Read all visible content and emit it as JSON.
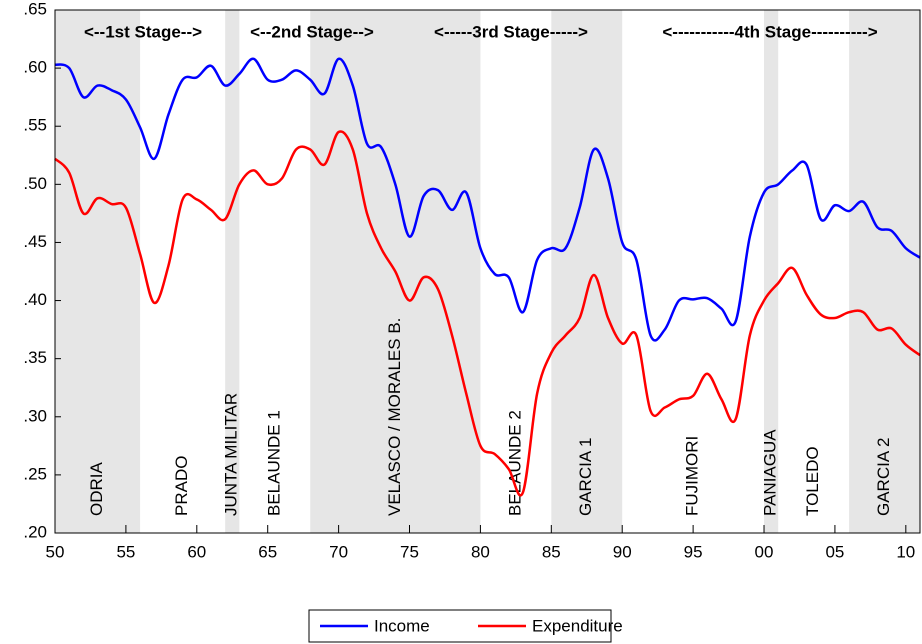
{
  "chart_data": {
    "type": "line",
    "annotations": [
      "<--1st Stage-->",
      "<--2nd Stage-->",
      "<-----3rd Stage----->",
      "<-----------4th Stage---------->"
    ],
    "periods": [
      {
        "label": "ODRIA",
        "start": 1950,
        "end": 1956,
        "shaded": true
      },
      {
        "label": "PRADO",
        "start": 1956,
        "end": 1962,
        "shaded": false
      },
      {
        "label": "JUNTA MILITAR",
        "start": 1962,
        "end": 1963,
        "shaded": true
      },
      {
        "label": "BELAUNDE 1",
        "start": 1963,
        "end": 1968,
        "shaded": false
      },
      {
        "label": "VELASCO / MORALES B.",
        "start": 1968,
        "end": 1980,
        "shaded": true
      },
      {
        "label": "BELAUNDE 2",
        "start": 1980,
        "end": 1985,
        "shaded": false
      },
      {
        "label": "GARCIA 1",
        "start": 1985,
        "end": 1990,
        "shaded": true
      },
      {
        "label": "FUJIMORI",
        "start": 1990,
        "end": 2000,
        "shaded": false
      },
      {
        "label": "PANIAGUA",
        "start": 2000,
        "end": 2001,
        "shaded": true
      },
      {
        "label": "TOLEDO",
        "start": 2001,
        "end": 2006,
        "shaded": false
      },
      {
        "label": "GARCIA 2",
        "start": 2006,
        "end": 2011,
        "shaded": true
      }
    ],
    "shade_color": "#e6e6e6",
    "x": [
      1950,
      1951,
      1952,
      1953,
      1954,
      1955,
      1956,
      1957,
      1958,
      1959,
      1960,
      1961,
      1962,
      1963,
      1964,
      1965,
      1966,
      1967,
      1968,
      1969,
      1970,
      1971,
      1972,
      1973,
      1974,
      1975,
      1976,
      1977,
      1978,
      1979,
      1980,
      1981,
      1982,
      1983,
      1984,
      1985,
      1986,
      1987,
      1988,
      1989,
      1990,
      1991,
      1992,
      1993,
      1994,
      1995,
      1996,
      1997,
      1998,
      1999,
      2000,
      2001,
      2002,
      2003,
      2004,
      2005,
      2006,
      2007,
      2008,
      2009,
      2010,
      2011
    ],
    "series": [
      {
        "name": "Income",
        "color": "#0000ff",
        "values": [
          0.603,
          0.6,
          0.575,
          0.585,
          0.581,
          0.573,
          0.549,
          0.522,
          0.56,
          0.59,
          0.592,
          0.602,
          0.585,
          0.595,
          0.608,
          0.59,
          0.59,
          0.598,
          0.59,
          0.578,
          0.608,
          0.585,
          0.535,
          0.532,
          0.5,
          0.455,
          0.49,
          0.495,
          0.478,
          0.493,
          0.445,
          0.423,
          0.42,
          0.39,
          0.435,
          0.445,
          0.445,
          0.48,
          0.53,
          0.505,
          0.45,
          0.435,
          0.37,
          0.375,
          0.4,
          0.401,
          0.402,
          0.393,
          0.382,
          0.455,
          0.493,
          0.5,
          0.512,
          0.517,
          0.47,
          0.482,
          0.477,
          0.485,
          0.463,
          0.46,
          0.445,
          0.437
        ]
      },
      {
        "name": "Expenditure",
        "color": "#ff0000",
        "values": [
          0.522,
          0.51,
          0.475,
          0.488,
          0.483,
          0.48,
          0.44,
          0.398,
          0.43,
          0.487,
          0.487,
          0.478,
          0.47,
          0.5,
          0.512,
          0.5,
          0.505,
          0.53,
          0.53,
          0.517,
          0.545,
          0.53,
          0.475,
          0.445,
          0.425,
          0.4,
          0.42,
          0.41,
          0.37,
          0.32,
          0.275,
          0.268,
          0.255,
          0.235,
          0.32,
          0.355,
          0.37,
          0.385,
          0.422,
          0.385,
          0.363,
          0.37,
          0.305,
          0.308,
          0.315,
          0.318,
          0.337,
          0.315,
          0.298,
          0.37,
          0.4,
          0.415,
          0.428,
          0.405,
          0.388,
          0.385,
          0.39,
          0.39,
          0.375,
          0.376,
          0.362,
          0.353
        ]
      }
    ],
    "xlim": [
      1950,
      2011
    ],
    "xticks": [
      {
        "value": 1950,
        "label": "50"
      },
      {
        "value": 1955,
        "label": "55"
      },
      {
        "value": 1960,
        "label": "60"
      },
      {
        "value": 1965,
        "label": "65"
      },
      {
        "value": 1970,
        "label": "70"
      },
      {
        "value": 1975,
        "label": "75"
      },
      {
        "value": 1980,
        "label": "80"
      },
      {
        "value": 1985,
        "label": "85"
      },
      {
        "value": 1990,
        "label": "90"
      },
      {
        "value": 1995,
        "label": "95"
      },
      {
        "value": 2000,
        "label": "00"
      },
      {
        "value": 2005,
        "label": "05"
      },
      {
        "value": 2010,
        "label": "10"
      }
    ],
    "ylim": [
      0.2,
      0.65
    ],
    "yticks": [
      {
        "value": 0.2,
        "label": ".20"
      },
      {
        "value": 0.25,
        "label": ".25"
      },
      {
        "value": 0.3,
        "label": ".30"
      },
      {
        "value": 0.35,
        "label": ".35"
      },
      {
        "value": 0.4,
        "label": ".40"
      },
      {
        "value": 0.45,
        "label": ".45"
      },
      {
        "value": 0.5,
        "label": ".50"
      },
      {
        "value": 0.55,
        "label": ".55"
      },
      {
        "value": 0.6,
        "label": ".60"
      },
      {
        "value": 0.65,
        "label": ".65"
      }
    ],
    "legend": "bottom"
  }
}
